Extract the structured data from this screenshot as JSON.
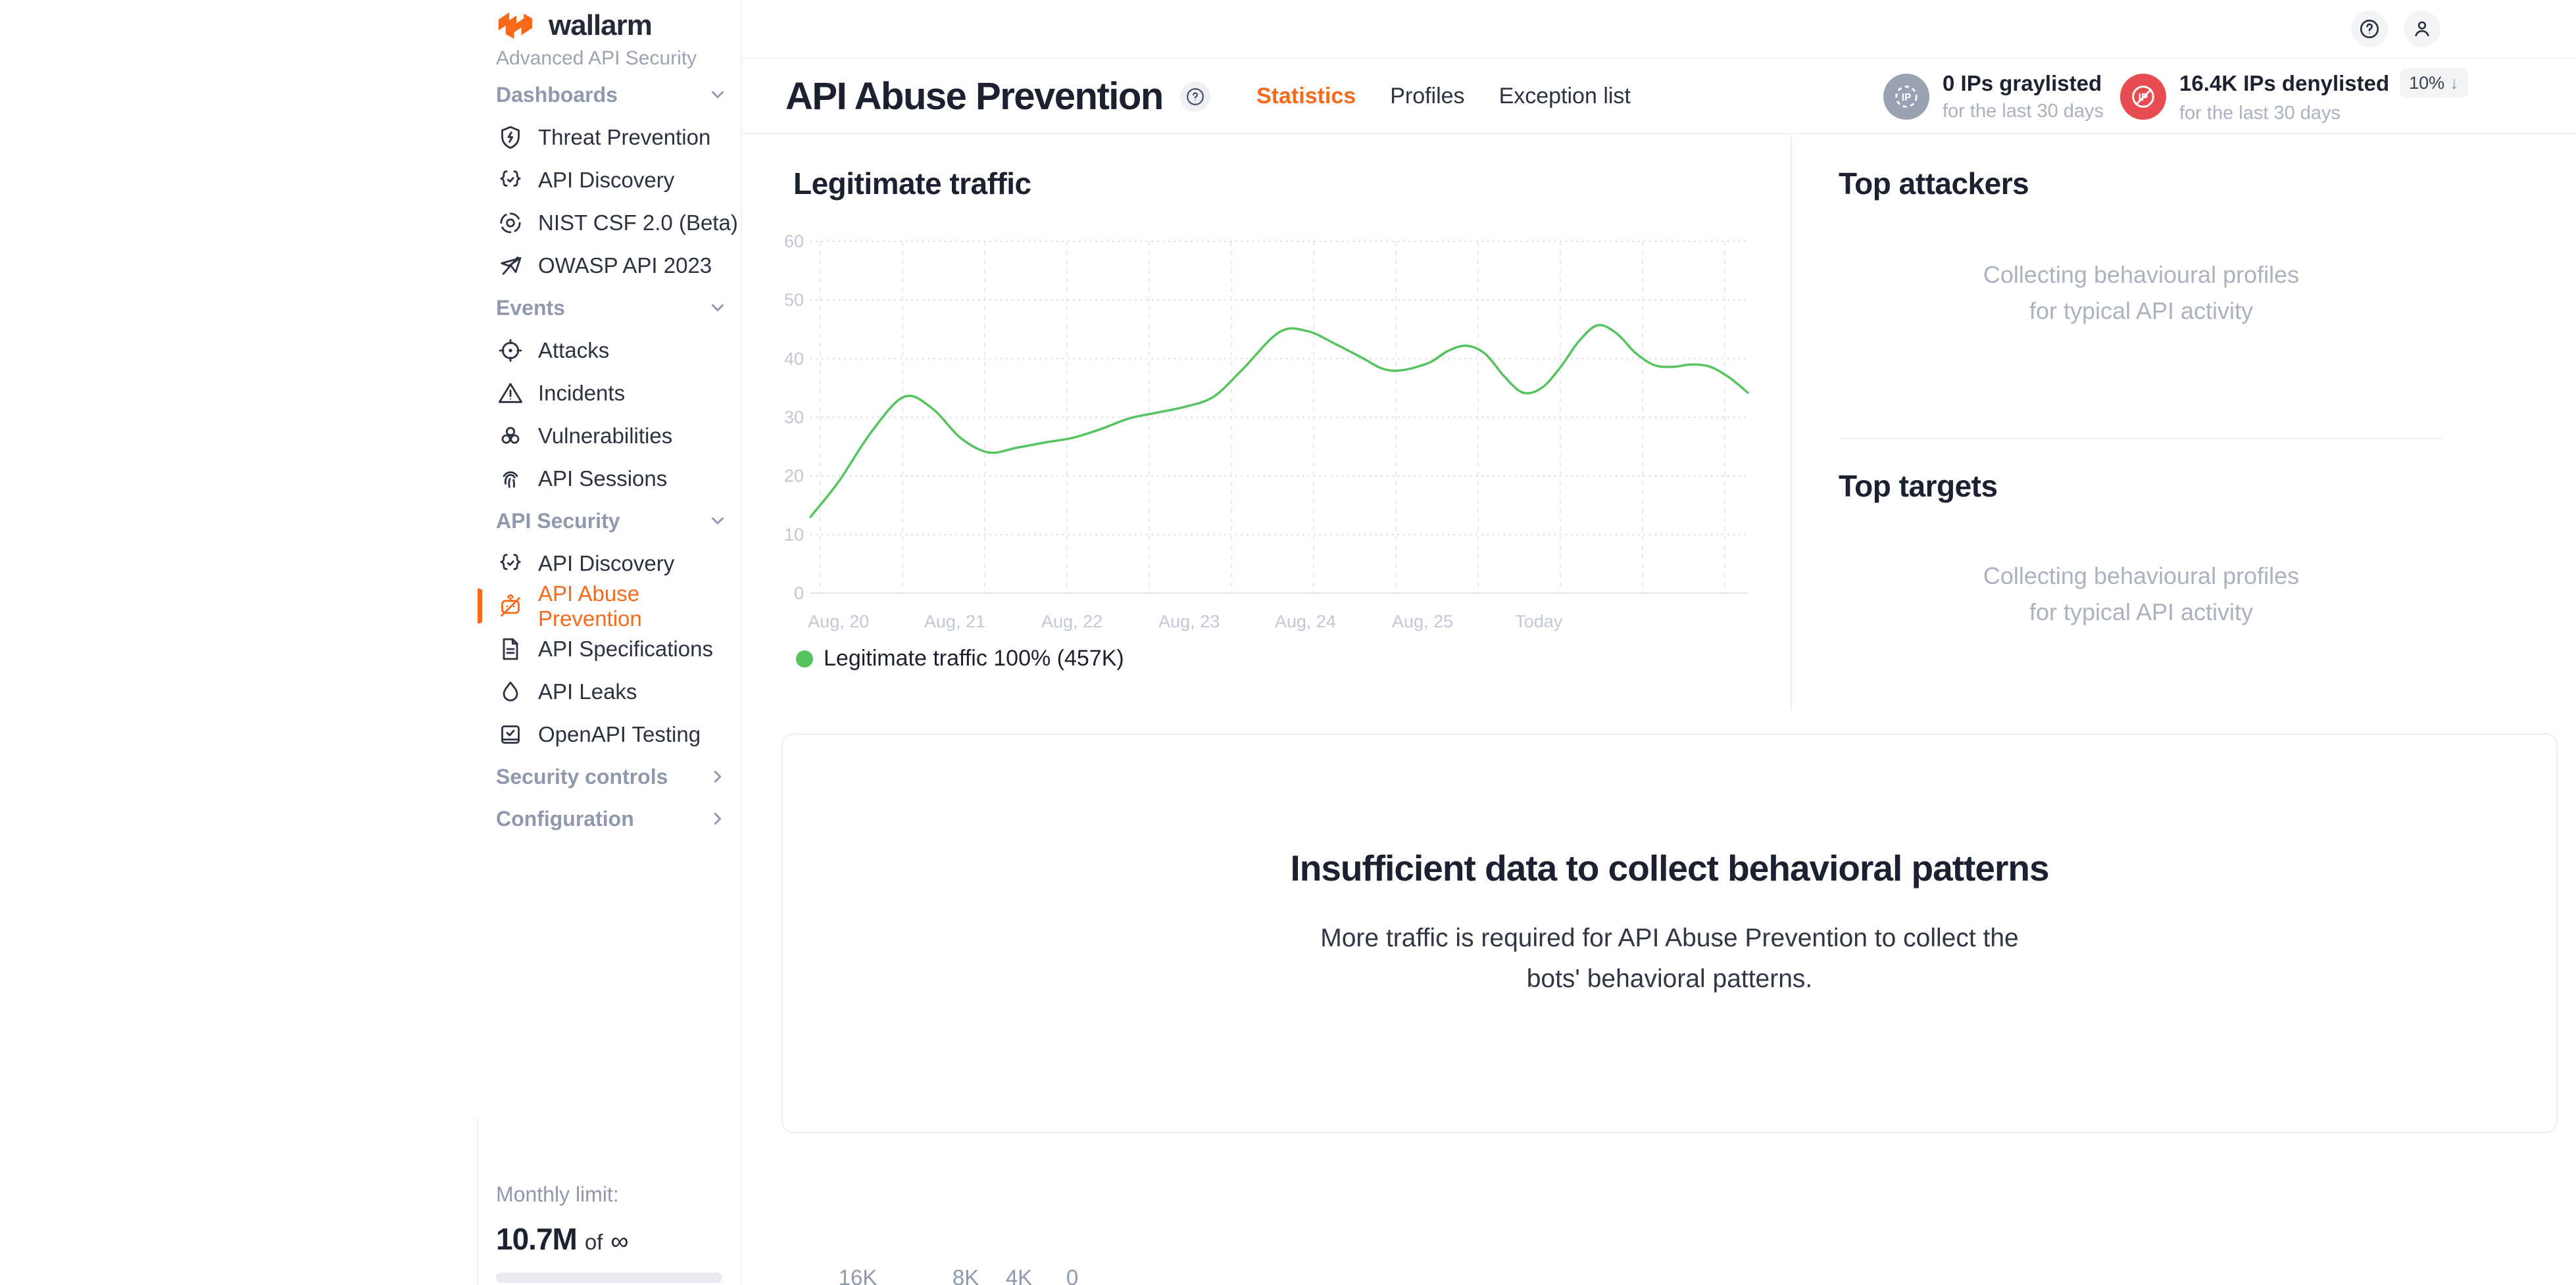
{
  "brand": {
    "name": "wallarm",
    "subtitle": "Advanced API Security"
  },
  "sidebar": {
    "sections": [
      {
        "label": "Dashboards",
        "chevron": "down",
        "items": [
          {
            "label": "Threat Prevention"
          },
          {
            "label": "API Discovery"
          },
          {
            "label": "NIST CSF 2.0 (Beta)"
          },
          {
            "label": "OWASP API 2023"
          }
        ]
      },
      {
        "label": "Events",
        "chevron": "down",
        "items": [
          {
            "label": "Attacks"
          },
          {
            "label": "Incidents"
          },
          {
            "label": "Vulnerabilities"
          },
          {
            "label": "API Sessions"
          }
        ]
      },
      {
        "label": "API Security",
        "chevron": "down",
        "items": [
          {
            "label": "API Discovery"
          },
          {
            "label": "API Abuse Prevention",
            "active": true
          },
          {
            "label": "API Specifications"
          },
          {
            "label": "API Leaks"
          },
          {
            "label": "OpenAPI Testing"
          }
        ]
      },
      {
        "label": "Security controls",
        "chevron": "right",
        "items": []
      },
      {
        "label": "Configuration",
        "chevron": "right",
        "items": []
      }
    ],
    "footer": {
      "limit_label": "Monthly limit:",
      "used": "10.7M",
      "of": "of",
      "total": "∞"
    }
  },
  "header": {
    "title": "API Abuse Prevention",
    "tabs": [
      {
        "label": "Statistics",
        "active": true
      },
      {
        "label": "Profiles"
      },
      {
        "label": "Exception list"
      }
    ],
    "stats": [
      {
        "value_label": "0 IPs graylisted",
        "period": "for the last 30 days",
        "color": "#99a2b3"
      },
      {
        "value_label": "16.4K IPs denylisted",
        "badge": "10%",
        "badge_arrow": "↓",
        "period": "for the last 30 days",
        "color": "#e74c50"
      }
    ]
  },
  "main": {
    "legend": "Legitimate traffic 100% (457K)",
    "top_attackers": {
      "title": "Top attackers",
      "placeholder_line1": "Collecting behavioural profiles",
      "placeholder_line2": "for typical API activity"
    },
    "top_targets": {
      "title": "Top targets",
      "placeholder_line1": "Collecting behavioural profiles",
      "placeholder_line2": "for typical API activity"
    },
    "insufficient": {
      "title": "Insufficient data to collect behavioral patterns",
      "body_line1": "More traffic is required for API Abuse Prevention to collect the",
      "body_line2": "bots' behavioral patterns."
    },
    "bottom_axis_labels": [
      "16K",
      "8K",
      "4K",
      "0"
    ]
  },
  "chart_data": {
    "type": "line",
    "title": "Legitimate traffic",
    "series_name": "Legitimate traffic",
    "color": "#55c45e",
    "ylim": [
      0,
      60
    ],
    "yticks": [
      0,
      10,
      20,
      30,
      40,
      50,
      60
    ],
    "grid": {
      "horizontal": "dotted",
      "vertical": "dashed",
      "vertical_count": 12
    },
    "legend_position": "bottom-left",
    "x_labels": [
      {
        "label": "Aug, 20",
        "pos": 3.0
      },
      {
        "label": "Aug, 21",
        "pos": 15.4
      },
      {
        "label": "Aug, 22",
        "pos": 27.9
      },
      {
        "label": "Aug, 23",
        "pos": 40.4
      },
      {
        "label": "Aug, 24",
        "pos": 52.8
      },
      {
        "label": "Aug, 25",
        "pos": 65.3
      },
      {
        "label": "Today",
        "pos": 77.7
      }
    ],
    "points": [
      [
        0,
        13
      ],
      [
        3,
        19
      ],
      [
        6.5,
        27.5
      ],
      [
        10,
        33.5
      ],
      [
        13,
        31.5
      ],
      [
        16,
        26.5
      ],
      [
        19,
        24
      ],
      [
        22,
        24.8
      ],
      [
        25,
        25.7
      ],
      [
        28,
        26.5
      ],
      [
        31,
        28
      ],
      [
        34,
        29.8
      ],
      [
        37,
        30.8
      ],
      [
        40,
        31.8
      ],
      [
        43,
        33.5
      ],
      [
        46,
        38
      ],
      [
        50,
        44.5
      ],
      [
        53,
        44.7
      ],
      [
        56,
        42.5
      ],
      [
        59,
        40
      ],
      [
        61,
        38.3
      ],
      [
        63,
        38
      ],
      [
        66,
        39.3
      ],
      [
        68,
        41.3
      ],
      [
        70,
        42.2
      ],
      [
        72,
        40.8
      ],
      [
        74,
        37
      ],
      [
        76,
        34.2
      ],
      [
        78,
        35
      ],
      [
        80,
        38.5
      ],
      [
        82,
        43
      ],
      [
        84,
        45.7
      ],
      [
        86,
        44.3
      ],
      [
        88,
        41
      ],
      [
        90,
        38.9
      ],
      [
        92,
        38.6
      ],
      [
        94,
        39
      ],
      [
        96,
        38.6
      ],
      [
        98,
        36.8
      ],
      [
        100,
        34.2
      ]
    ],
    "total_label": "Legitimate traffic 100% (457K)"
  }
}
